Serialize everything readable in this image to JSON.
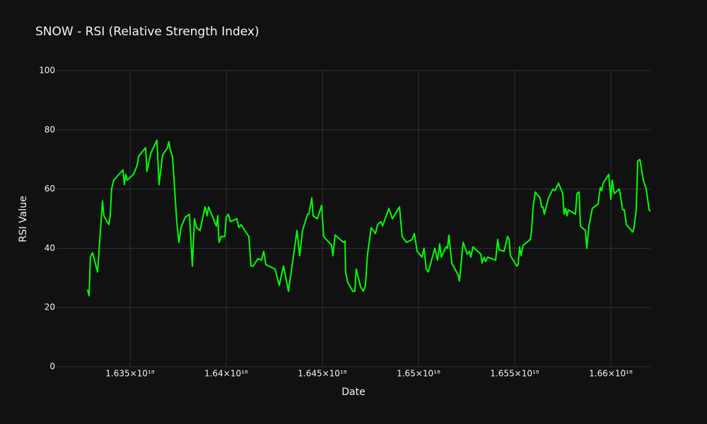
{
  "chart_data": {
    "type": "line",
    "title": "SNOW - RSI (Relative Strength Index)",
    "x_label": "Date",
    "y_label": "RSI Value",
    "xlim": [
      1.63118e+18,
      1.66206e+18
    ],
    "xticks": [
      {
        "value": 1.635e+18,
        "label": "1.635×10¹⁸"
      },
      {
        "value": 1.64e+18,
        "label": "1.64×10¹⁸"
      },
      {
        "value": 1.645e+18,
        "label": "1.645×10¹⁸"
      },
      {
        "value": 1.65e+18,
        "label": "1.65×10¹⁸"
      },
      {
        "value": 1.655e+18,
        "label": "1.655×10¹⁸"
      },
      {
        "value": 1.66e+18,
        "label": "1.66×10¹⁸"
      }
    ],
    "ylim": [
      0,
      100
    ],
    "yticks": [
      0,
      20,
      40,
      60,
      80,
      100
    ],
    "grid": true,
    "x": [
      1.63279e+18,
      1.63287e+18,
      1.63294e+18,
      1.63305e+18,
      1.63331e+18,
      1.63357e+18,
      1.63364e+18,
      1.6339e+18,
      1.63397e+18,
      1.63404e+18,
      1.63415e+18,
      1.63463e+18,
      1.63471e+18,
      1.63478e+18,
      1.63485e+18,
      1.63518e+18,
      1.63537e+18,
      1.63544e+18,
      1.63581e+18,
      1.63588e+18,
      1.63607e+18,
      1.6364e+18,
      1.63651e+18,
      1.63669e+18,
      1.63695e+18,
      1.63702e+18,
      1.6371e+18,
      1.63721e+18,
      1.63743e+18,
      1.63754e+18,
      1.63765e+18,
      1.63787e+18,
      1.63809e+18,
      1.63824e+18,
      1.63835e+18,
      1.63846e+18,
      1.63864e+18,
      1.6389e+18,
      1.63901e+18,
      1.63908e+18,
      1.63949e+18,
      1.63956e+18,
      1.63963e+18,
      1.63974e+18,
      1.63993e+18,
      1.64e+18,
      1.64011e+18,
      1.64022e+18,
      1.64055e+18,
      1.64066e+18,
      1.64077e+18,
      1.64118e+18,
      1.64129e+18,
      1.6414e+18,
      1.64165e+18,
      1.64184e+18,
      1.64195e+18,
      1.64206e+18,
      1.64254e+18,
      1.64276e+18,
      1.64298e+18,
      1.64324e+18,
      1.64353e+18,
      1.64368e+18,
      1.64382e+18,
      1.64397e+18,
      1.64423e+18,
      1.6443e+18,
      1.64445e+18,
      1.64452e+18,
      1.64474e+18,
      1.64496e+18,
      1.64507e+18,
      1.64548e+18,
      1.64555e+18,
      1.64566e+18,
      1.6461e+18,
      1.64618e+18,
      1.64621e+18,
      1.64632e+18,
      1.64658e+18,
      1.64669e+18,
      1.64676e+18,
      1.64699e+18,
      1.64713e+18,
      1.64724e+18,
      1.64735e+18,
      1.64754e+18,
      1.64776e+18,
      1.64787e+18,
      1.64805e+18,
      1.64813e+18,
      1.64846e+18,
      1.64864e+18,
      1.64901e+18,
      1.64915e+18,
      1.64938e+18,
      1.64967e+18,
      1.64978e+18,
      1.64993e+18,
      1.65018e+18,
      1.65029e+18,
      1.6504e+18,
      1.65051e+18,
      1.65085e+18,
      1.65099e+18,
      1.6511e+18,
      1.65118e+18,
      1.65143e+18,
      1.65151e+18,
      1.65158e+18,
      1.65173e+18,
      1.65206e+18,
      1.65213e+18,
      1.65232e+18,
      1.65254e+18,
      1.65265e+18,
      1.65272e+18,
      1.65283e+18,
      1.65324e+18,
      1.65331e+18,
      1.65342e+18,
      1.65349e+18,
      1.6536e+18,
      1.65401e+18,
      1.65412e+18,
      1.65419e+18,
      1.65445e+18,
      1.65463e+18,
      1.65471e+18,
      1.65478e+18,
      1.65511e+18,
      1.65518e+18,
      1.65526e+18,
      1.65533e+18,
      1.65544e+18,
      1.65581e+18,
      1.65588e+18,
      1.65596e+18,
      1.65607e+18,
      1.65632e+18,
      1.6564e+18,
      1.65647e+18,
      1.65654e+18,
      1.65676e+18,
      1.65699e+18,
      1.6571e+18,
      1.65728e+18,
      1.6575e+18,
      1.65757e+18,
      1.65765e+18,
      1.65772e+18,
      1.65779e+18,
      1.65816e+18,
      1.65824e+18,
      1.65835e+18,
      1.65842e+18,
      1.65868e+18,
      1.65875e+18,
      1.65886e+18,
      1.65904e+18,
      1.65934e+18,
      1.65945e+18,
      1.65952e+18,
      1.6596e+18,
      1.65989e+18,
      1.66e+18,
      1.66007e+18,
      1.66018e+18,
      1.66044e+18,
      1.66062e+18,
      1.6607e+18,
      1.66081e+18,
      1.66114e+18,
      1.66121e+18,
      1.66132e+18,
      1.6614e+18,
      1.66151e+18,
      1.66169e+18,
      1.66184e+18,
      1.66199e+18,
      1.66206e+18
    ],
    "series": [
      {
        "color": "#00ff00",
        "values": [
          26,
          24,
          37,
          38.5,
          32,
          56,
          51,
          48,
          51,
          60,
          63,
          66.5,
          61.5,
          65,
          63,
          65,
          68,
          71,
          74,
          66,
          72,
          76.5,
          61.5,
          71.5,
          74,
          76,
          73,
          71,
          49,
          42,
          47,
          50.5,
          51.5,
          34,
          50,
          47,
          46,
          54,
          51,
          54,
          47.5,
          51,
          42,
          44,
          44,
          50.5,
          51.5,
          49,
          50,
          47,
          48,
          44,
          34,
          34,
          36.5,
          36,
          39,
          34.5,
          33,
          27.5,
          34,
          25.5,
          39,
          46,
          37.5,
          46,
          51.5,
          51.5,
          57,
          51,
          50,
          54.5,
          44,
          41,
          37.5,
          44.5,
          42,
          42.5,
          32,
          28.5,
          25.5,
          25.5,
          33,
          27,
          25.5,
          27.5,
          38,
          47,
          45,
          48,
          49,
          47.5,
          53.5,
          50,
          54,
          44,
          42,
          43,
          45,
          39,
          37,
          40,
          33,
          32,
          40,
          36,
          41.5,
          37,
          40.5,
          40,
          44.5,
          35,
          31,
          29,
          42,
          38,
          39,
          37,
          40.5,
          38,
          35,
          37,
          35.5,
          37,
          36,
          43,
          39.5,
          39,
          44,
          43,
          37.5,
          34,
          34.5,
          40.5,
          37.5,
          41,
          43,
          46,
          54,
          59,
          57,
          54,
          54,
          51.5,
          57,
          60,
          59.5,
          62,
          58.5,
          51.5,
          53.5,
          51,
          53,
          51.5,
          58.5,
          59,
          47.5,
          46,
          40,
          47.5,
          53.5,
          55,
          60.5,
          59.5,
          62,
          65,
          56.5,
          63,
          58.5,
          60,
          53,
          53,
          48,
          45.5,
          47,
          53,
          69.5,
          70,
          63,
          60,
          53,
          52.5
        ]
      }
    ]
  }
}
